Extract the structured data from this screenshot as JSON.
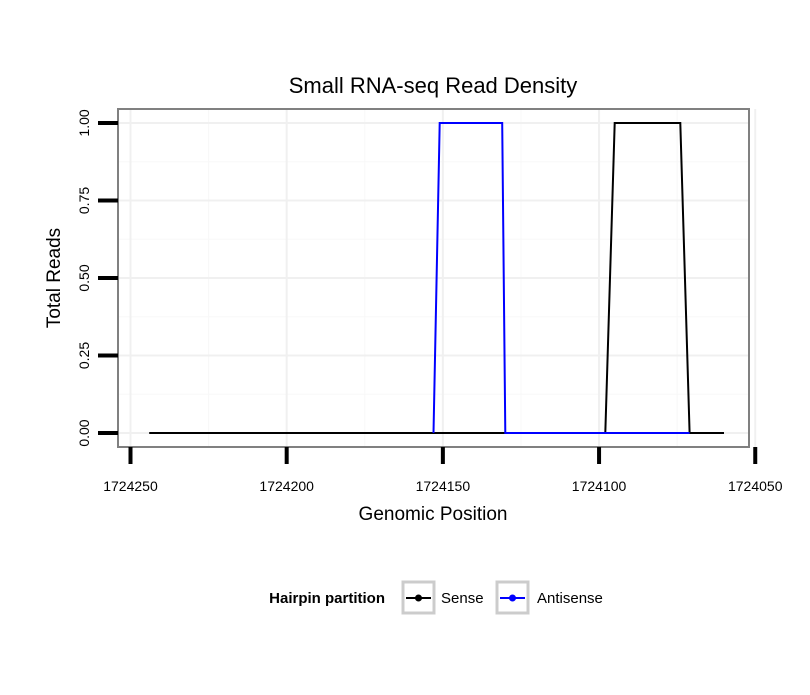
{
  "chart_data": {
    "type": "line",
    "title": "Small RNA-seq Read Density",
    "xlabel": "Genomic Position",
    "ylabel": "Total Reads",
    "x_reversed": true,
    "xlim": [
      1724254,
      1724052
    ],
    "ylim": [
      -0.045,
      1.045
    ],
    "x_ticks": [
      1724250,
      1724200,
      1724150,
      1724100,
      1724050
    ],
    "x_tick_labels": [
      "1724250",
      "1724200",
      "1724150",
      "1724100",
      "1724050"
    ],
    "y_ticks": [
      0,
      0.25,
      0.5,
      0.75,
      1
    ],
    "y_tick_labels": [
      "0.00",
      "0.25",
      "0.50",
      "0.75",
      "1.00"
    ],
    "grid": true,
    "legend": {
      "title": "Hairpin partition",
      "placement": "bottom",
      "entries": [
        "Sense",
        "Antisense"
      ]
    },
    "series": [
      {
        "name": "Sense",
        "color": "#000000",
        "x": [
          1724244,
          1724098,
          1724095,
          1724074,
          1724071,
          1724060
        ],
        "y": [
          0,
          0,
          1,
          1,
          0,
          0
        ]
      },
      {
        "name": "Antisense",
        "color": "#0000ff",
        "x": [
          1724153,
          1724151,
          1724131,
          1724130,
          1724098,
          1724071
        ],
        "y": [
          0,
          1,
          1,
          0,
          0,
          0
        ]
      }
    ]
  }
}
